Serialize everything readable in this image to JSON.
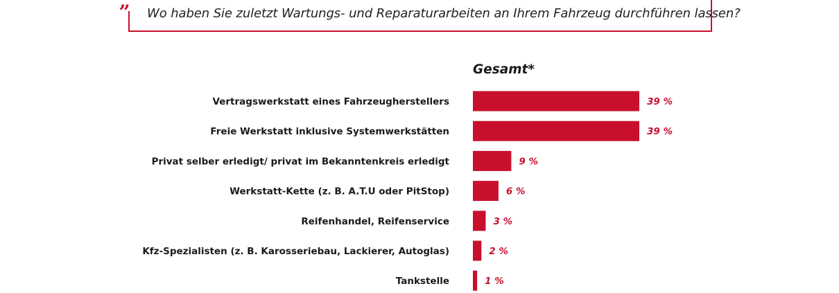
{
  "question": "Wo haben Sie zuletzt Wartungs- und Reparaturarbeiten an Ihrem Fahrzeug durchführen lassen?",
  "quote_glyph": "„",
  "colors": {
    "accent": "#c8102e",
    "text": "#1a1a1a"
  },
  "chart_data": {
    "type": "bar",
    "orientation": "horizontal",
    "title": "",
    "series": [
      {
        "name": "Gesamt*",
        "values": [
          39,
          39,
          9,
          6,
          3,
          2,
          1
        ]
      }
    ],
    "categories": [
      "Vertragswerkstatt eines Fahrzeugherstellers",
      "Freie Werkstatt inklusive Systemwerkstätten",
      "Privat selber erledigt/ privat im Bekanntenkreis erledigt",
      "Werkstatt-Kette (z. B. A.T.U oder PitStop)",
      "Reifenhandel, Reifenservice",
      "Kfz-Spezialisten (z. B. Karosseriebau, Lackierer, Autoglas)",
      "Tankstelle"
    ],
    "value_labels": [
      "39 %",
      "39 %",
      "9 %",
      "6 %",
      "3 %",
      "2 %",
      "1 %"
    ],
    "xlim": [
      0,
      39
    ],
    "unit": "%",
    "grid": false,
    "legend": "none"
  }
}
